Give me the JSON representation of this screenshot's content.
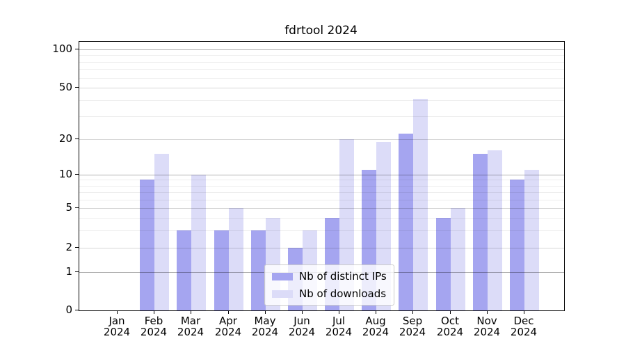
{
  "title": "fdrtool 2024",
  "legend": {
    "items": [
      {
        "label": "Nb of distinct IPs",
        "color": "#a5a5f0"
      },
      {
        "label": "Nb of downloads",
        "color": "#dcdcf8"
      }
    ]
  },
  "colors": {
    "axis": "#000000",
    "bar_dark": "#a5a5f0",
    "bar_light": "#dcdcf8",
    "grid_major": "rgba(0,0,0,0.30)",
    "grid_labeled_minor": "rgba(0,0,0,0.16)",
    "grid_minor": "rgba(0,0,0,0.07)"
  },
  "chart_data": {
    "type": "bar",
    "title": "fdrtool 2024",
    "categories": [
      "Jan 2024",
      "Feb 2024",
      "Mar 2024",
      "Apr 2024",
      "May 2024",
      "Jun 2024",
      "Jul 2024",
      "Aug 2024",
      "Sep 2024",
      "Oct 2024",
      "Nov 2024",
      "Dec 2024"
    ],
    "series": [
      {
        "name": "Nb of distinct IPs",
        "color": "#a5a5f0",
        "values": [
          0,
          9,
          3,
          3,
          3,
          2,
          4,
          11,
          22,
          4,
          15,
          9
        ]
      },
      {
        "name": "Nb of downloads",
        "color": "#dcdcf8",
        "values": [
          0,
          15,
          10,
          5,
          4,
          3,
          20,
          19,
          41,
          5,
          16,
          11
        ]
      }
    ],
    "xlabel": "",
    "ylabel": "",
    "yscale": "log-like (linear 0-1, logarithmic above)",
    "ylim": [
      0,
      115
    ],
    "yticks": [
      0,
      1,
      2,
      5,
      10,
      20,
      50,
      100
    ],
    "grid": {
      "major": [
        1,
        10,
        100
      ],
      "labeled_minor": [
        2,
        5,
        20,
        50
      ],
      "minor": [
        3,
        4,
        6,
        7,
        8,
        9,
        30,
        40,
        60,
        70,
        80,
        90
      ]
    },
    "grid_on": true,
    "legend_position": "lower center inside plot",
    "bar_group": "two bars per month, dark left of tick, light right of tick"
  }
}
